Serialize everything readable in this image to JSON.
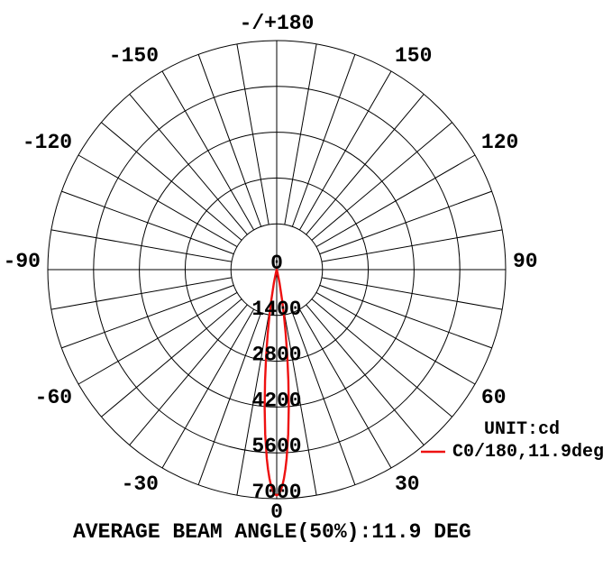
{
  "chart_data": {
    "type": "line",
    "projection": "polar",
    "title": "AVERAGE BEAM ANGLE(50%):11.9 DEG",
    "unit_label": "UNIT:cd",
    "legend": {
      "position": "right-bottom",
      "entries": [
        {
          "label": "C0/180,11.9deg",
          "color": "#ee1111"
        }
      ]
    },
    "angle_axis": {
      "zero_direction": "down",
      "grid_step_deg": 10,
      "labels": [
        {
          "value": 180,
          "text": "-/+180"
        },
        {
          "value": 150,
          "text": "150"
        },
        {
          "value": 120,
          "text": "120"
        },
        {
          "value": 90,
          "text": "90"
        },
        {
          "value": 60,
          "text": "60"
        },
        {
          "value": 30,
          "text": "30"
        },
        {
          "value": 0,
          "text": "0"
        },
        {
          "value": -30,
          "text": "-30"
        },
        {
          "value": -60,
          "text": "-60"
        },
        {
          "value": -90,
          "text": "-90"
        },
        {
          "value": -120,
          "text": "-120"
        },
        {
          "value": -150,
          "text": "-150"
        }
      ]
    },
    "radial_axis": {
      "unit": "cd",
      "max": 7000,
      "ticks": [
        0,
        1400,
        2800,
        4200,
        5600,
        7000
      ]
    },
    "series": [
      {
        "name": "C0/180,11.9deg",
        "color": "#ee1111",
        "peak_cd": 6900,
        "beam_angle_50pct_deg": 11.9,
        "points_theta_cd": [
          [
            -20,
            3
          ],
          [
            -18,
            12
          ],
          [
            -15,
            84
          ],
          [
            -12,
            411
          ],
          [
            -10,
            974
          ],
          [
            -9,
            1413
          ],
          [
            -8,
            1971
          ],
          [
            -7,
            2644
          ],
          [
            -6,
            3410
          ],
          [
            -5,
            4229
          ],
          [
            -4,
            5044
          ],
          [
            -3,
            5785
          ],
          [
            -2.5,
            6105
          ],
          [
            -2,
            6380
          ],
          [
            -1.5,
            6603
          ],
          [
            -1,
            6766
          ],
          [
            -0.5,
            6866
          ],
          [
            0,
            6900
          ],
          [
            0.5,
            6866
          ],
          [
            1,
            6766
          ],
          [
            1.5,
            6603
          ],
          [
            2,
            6380
          ],
          [
            2.5,
            6105
          ],
          [
            3,
            5785
          ],
          [
            4,
            5044
          ],
          [
            5,
            4229
          ],
          [
            6,
            3410
          ],
          [
            7,
            2644
          ],
          [
            8,
            1971
          ],
          [
            9,
            1413
          ],
          [
            10,
            974
          ],
          [
            12,
            411
          ],
          [
            15,
            84
          ],
          [
            18,
            12
          ],
          [
            20,
            3
          ]
        ]
      }
    ],
    "grid_color": "#000000"
  }
}
